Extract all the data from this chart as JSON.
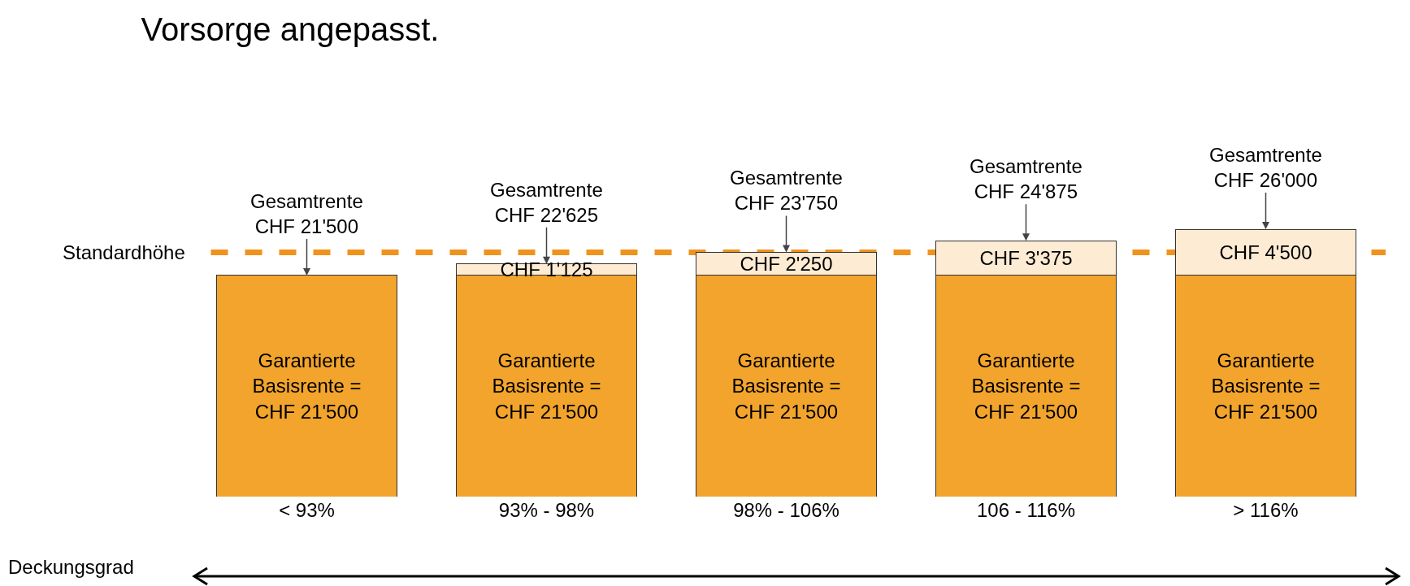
{
  "chart_data": {
    "type": "bar",
    "title": "Vorsorge angepasst.",
    "xlabel": "Deckungsgrad",
    "categories": [
      "< 93%",
      "93% - 98%",
      "98% - 106%",
      "106 - 116%",
      "> 116%"
    ],
    "stacked": true,
    "series": [
      {
        "color": "#f2a42c",
        "values": [
          21500,
          21500,
          21500,
          21500,
          21500
        ],
        "value_labels": [
          "Garantierte\nBasisrente =\nCHF 21'500",
          "Garantierte\nBasisrente =\nCHF 21'500",
          "Garantierte\nBasisrente =\nCHF 21'500",
          "Garantierte\nBasisrente =\nCHF 21'500",
          "Garantierte\nBasisrente =\nCHF 21'500"
        ]
      },
      {
        "color": "#fdebd3",
        "values": [
          0,
          1125,
          2250,
          3375,
          4500
        ],
        "value_labels": [
          null,
          "CHF 1'125",
          "CHF 2'250",
          "CHF 3'375",
          "CHF 4'500"
        ]
      }
    ],
    "totals": [
      "Gesamtrente\nCHF 21'500",
      "Gesamtrente\nCHF 22'625",
      "Gesamtrente\nCHF 23'750",
      "Gesamtrente\nCHF 24'875",
      "Gesamtrente\nCHF 26'000"
    ],
    "ref_lines": [
      {
        "axis": "y",
        "value": 23750,
        "label": "Standardhöhe",
        "color": "#f0921e",
        "line_style": "dashed"
      }
    ],
    "grid": false
  }
}
